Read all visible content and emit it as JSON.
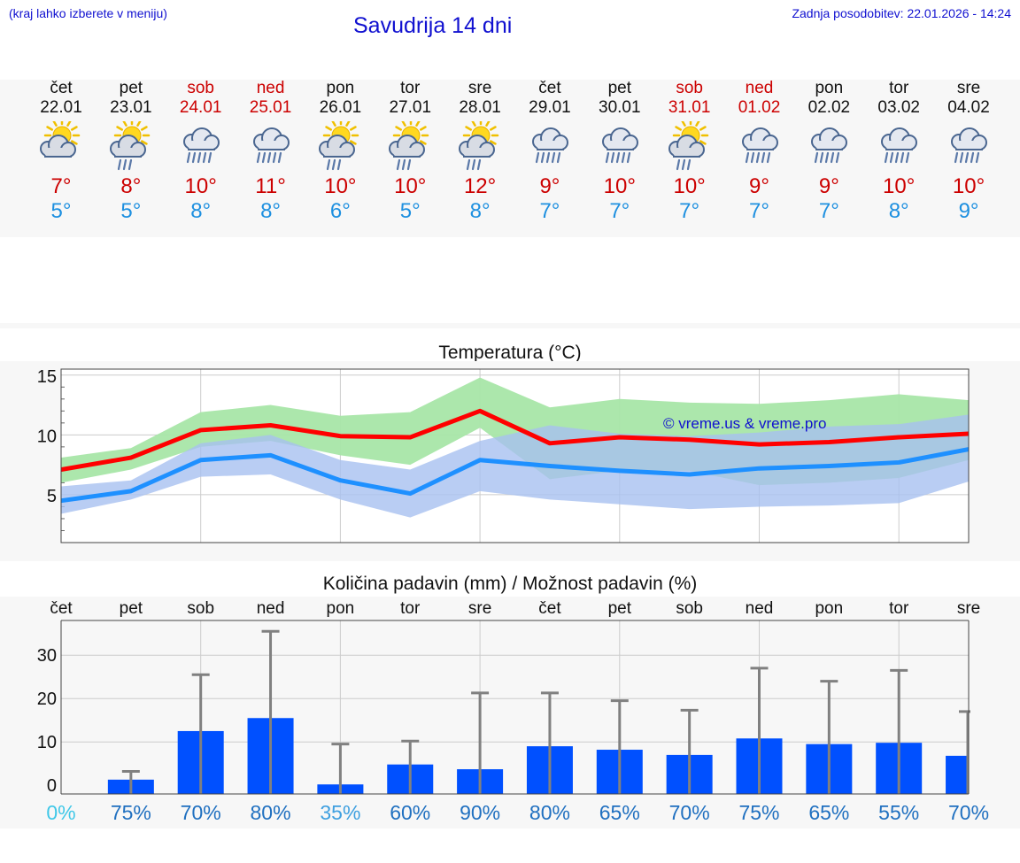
{
  "header": {
    "note": "(kraj lahko izberete v meniju)",
    "title": "Savudrija 14 dni",
    "updated": "Zadnja posodobitev: 22.01.2026 - 14:24"
  },
  "colors": {
    "max": "#ff0000",
    "min": "#1e90ff",
    "bar": "#0050ff",
    "weekend": "#cc0000",
    "band_max": "#a8e6a8",
    "band_min": "#a8c0f0"
  },
  "days": [
    {
      "name": "čet",
      "date": "22.01",
      "weekend": false,
      "icon": "sun-cloud-icon",
      "max": "7°",
      "min": "5°"
    },
    {
      "name": "pet",
      "date": "23.01",
      "weekend": false,
      "icon": "sun-cloud-rain-icon",
      "max": "8°",
      "min": "5°"
    },
    {
      "name": "sob",
      "date": "24.01",
      "weekend": true,
      "icon": "cloud-rain-icon",
      "max": "10°",
      "min": "8°"
    },
    {
      "name": "ned",
      "date": "25.01",
      "weekend": true,
      "icon": "cloud-rain-icon",
      "max": "11°",
      "min": "8°"
    },
    {
      "name": "pon",
      "date": "26.01",
      "weekend": false,
      "icon": "sun-cloud-rain-icon",
      "max": "10°",
      "min": "6°"
    },
    {
      "name": "tor",
      "date": "27.01",
      "weekend": false,
      "icon": "sun-cloud-rain-icon",
      "max": "10°",
      "min": "5°"
    },
    {
      "name": "sre",
      "date": "28.01",
      "weekend": false,
      "icon": "sun-cloud-rain-icon",
      "max": "12°",
      "min": "8°"
    },
    {
      "name": "čet",
      "date": "29.01",
      "weekend": false,
      "icon": "cloud-rain-icon",
      "max": "9°",
      "min": "7°"
    },
    {
      "name": "pet",
      "date": "30.01",
      "weekend": false,
      "icon": "cloud-rain-icon",
      "max": "10°",
      "min": "7°"
    },
    {
      "name": "sob",
      "date": "31.01",
      "weekend": true,
      "icon": "sun-cloud-rain-icon",
      "max": "10°",
      "min": "7°"
    },
    {
      "name": "ned",
      "date": "01.02",
      "weekend": true,
      "icon": "cloud-rain-icon",
      "max": "9°",
      "min": "7°"
    },
    {
      "name": "pon",
      "date": "02.02",
      "weekend": false,
      "icon": "cloud-rain-icon",
      "max": "9°",
      "min": "7°"
    },
    {
      "name": "tor",
      "date": "03.02",
      "weekend": false,
      "icon": "cloud-rain-icon",
      "max": "10°",
      "min": "8°"
    },
    {
      "name": "sre",
      "date": "04.02",
      "weekend": false,
      "icon": "cloud-rain-icon",
      "max": "10°",
      "min": "9°"
    }
  ],
  "chart_data": [
    {
      "type": "line",
      "title": "Temperatura (°C)",
      "watermark": "© vreme.us & vreme.pro",
      "ylim": [
        1,
        15.5
      ],
      "yticks": [
        5,
        10,
        15
      ],
      "x": [
        0,
        1,
        2,
        3,
        4,
        5,
        6,
        7,
        8,
        9,
        10,
        11,
        12,
        13
      ],
      "series": [
        {
          "name": "max",
          "values": [
            7.1,
            8.1,
            10.4,
            10.8,
            9.9,
            9.8,
            12.0,
            9.3,
            9.8,
            9.6,
            9.2,
            9.4,
            9.8,
            10.1
          ],
          "band_low": [
            6.0,
            7.1,
            9.0,
            9.5,
            8.3,
            7.5,
            10.6,
            6.3,
            7.0,
            7.0,
            5.8,
            6.0,
            6.4,
            7.9
          ],
          "band_high": [
            8.1,
            8.9,
            11.9,
            12.5,
            11.6,
            11.9,
            14.8,
            12.3,
            13.0,
            12.7,
            12.6,
            12.9,
            13.4,
            12.9
          ]
        },
        {
          "name": "min",
          "values": [
            4.5,
            5.3,
            7.9,
            8.3,
            6.2,
            5.1,
            7.9,
            7.4,
            7.0,
            6.7,
            7.2,
            7.4,
            7.7,
            8.8
          ],
          "band_low": [
            3.4,
            4.6,
            6.5,
            6.7,
            4.6,
            3.1,
            5.3,
            4.6,
            4.2,
            3.8,
            4.0,
            4.1,
            4.3,
            6.1
          ],
          "band_high": [
            5.7,
            6.2,
            9.3,
            10.0,
            7.9,
            7.1,
            9.5,
            10.8,
            10.1,
            9.9,
            10.2,
            10.7,
            10.9,
            11.7
          ]
        }
      ]
    },
    {
      "type": "bar",
      "title": "Količina padavin (mm) / Možnost padavin (%)",
      "ylim": [
        -2,
        38
      ],
      "yticks": [
        0,
        10,
        20,
        30
      ],
      "categories": [
        "čet",
        "pet",
        "sob",
        "ned",
        "pon",
        "tor",
        "sre",
        "čet",
        "pet",
        "sob",
        "ned",
        "pon",
        "tor",
        "sre"
      ],
      "values": [
        0,
        1.3,
        12.5,
        15.5,
        0.2,
        4.8,
        3.7,
        9.0,
        8.2,
        7.0,
        10.8,
        9.5,
        9.8,
        6.8
      ],
      "errors_high": [
        0,
        3.2,
        25.5,
        35.5,
        9.5,
        10.2,
        21.3,
        21.3,
        19.5,
        17.3,
        27.0,
        24.0,
        26.5,
        17.0
      ],
      "probability": [
        "0%",
        "75%",
        "70%",
        "80%",
        "35%",
        "60%",
        "90%",
        "80%",
        "65%",
        "70%",
        "75%",
        "65%",
        "55%",
        "70%"
      ],
      "probability_colors": [
        "#40c8e8",
        "#2070c0",
        "#2070c0",
        "#2070c0",
        "#40a0e0",
        "#2070c0",
        "#2070c0",
        "#2070c0",
        "#2070c0",
        "#2070c0",
        "#2070c0",
        "#2070c0",
        "#2070c0",
        "#2070c0"
      ]
    }
  ]
}
